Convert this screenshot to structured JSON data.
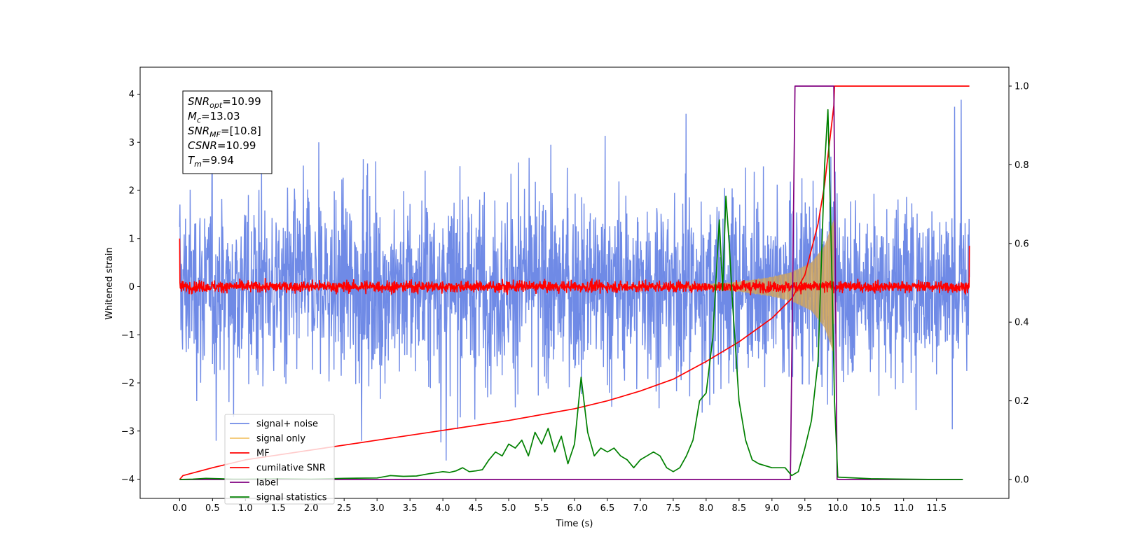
{
  "chart_data": {
    "type": "line",
    "title": "",
    "xlabel": "Time (s)",
    "ylabel": "Whitened strain",
    "xlim": [
      -0.6,
      12.6
    ],
    "ylim": [
      -4.4,
      4.56
    ],
    "y2lim": [
      -0.048,
      1.048
    ],
    "x_ticks": [
      0.0,
      0.5,
      1.0,
      1.5,
      2.0,
      2.5,
      3.0,
      3.5,
      4.0,
      4.5,
      5.0,
      5.5,
      6.0,
      6.5,
      7.0,
      7.5,
      8.0,
      8.5,
      9.0,
      9.5,
      10.0,
      10.5,
      11.0,
      11.5
    ],
    "x_tick_labels": [
      "0.0",
      "0.5",
      "1.0",
      "1.5",
      "2.0",
      "2.5",
      "3.0",
      "3.5",
      "4.0",
      "4.5",
      "5.0",
      "5.5",
      "6.0",
      "6.5",
      "7.0",
      "7.5",
      "8.0",
      "8.5",
      "9.0",
      "9.5",
      "10.0",
      "10.5",
      "11.0",
      "11.5"
    ],
    "y_ticks": [
      -4,
      -3,
      -2,
      -1,
      0,
      1,
      2,
      3,
      4
    ],
    "y_tick_labels": [
      "−4",
      "−3",
      "−2",
      "−1",
      "0",
      "1",
      "2",
      "3",
      "4"
    ],
    "y2_ticks": [
      0.0,
      0.2,
      0.4,
      0.6,
      0.8,
      1.0
    ],
    "y2_tick_labels": [
      "0.0",
      "0.2",
      "0.4",
      "0.6",
      "0.8",
      "1.0"
    ],
    "legend_placement": "lower-left",
    "grid": false,
    "annotation_box": {
      "lines": [
        {
          "main": "SNR",
          "sub": "opt",
          "value": "=10.99"
        },
        {
          "main": "M",
          "sub": "c",
          "value": "=13.03"
        },
        {
          "main": "SNR",
          "sub": "MF",
          "value": "=[10.8]"
        },
        {
          "main": "CSNR",
          "sub": "",
          "value": "=10.99"
        },
        {
          "main": "T",
          "sub": "m",
          "value": "=9.94"
        }
      ]
    },
    "series": [
      {
        "name": "signal+ noise",
        "color": "#6f8ae6",
        "axis": "left",
        "kind": "noise",
        "x_range": [
          0,
          12
        ],
        "amplitude_rms": 1.1,
        "peak_max": 4.2,
        "peak_min": -3.9
      },
      {
        "name": "signal only",
        "color": "#f2c56b",
        "axis": "left",
        "kind": "chirp",
        "x_range": [
          0,
          9.94
        ],
        "envelope": {
          "x": [
            7.5,
            8.0,
            8.5,
            9.0,
            9.3,
            9.6,
            9.8,
            9.94
          ],
          "amp": [
            0.03,
            0.05,
            0.1,
            0.2,
            0.3,
            0.5,
            0.85,
            1.4
          ]
        }
      },
      {
        "name": "MF",
        "color": "#ff0000",
        "axis": "left",
        "kind": "noise",
        "x_range": [
          0,
          12
        ],
        "amplitude_rms": 0.06,
        "edges": {
          "start": 1.0,
          "end": 0.85
        }
      },
      {
        "name": "cumilative SNR",
        "color": "#ff0000",
        "axis": "right",
        "x": [
          0.0,
          0.05,
          0.5,
          1.0,
          2.0,
          3.0,
          4.0,
          5.0,
          6.0,
          6.5,
          7.0,
          7.5,
          8.0,
          8.5,
          9.0,
          9.3,
          9.5,
          9.7,
          9.8,
          9.94,
          9.95,
          12.0
        ],
        "y": [
          0.0,
          0.01,
          0.03,
          0.05,
          0.075,
          0.1,
          0.125,
          0.15,
          0.18,
          0.2,
          0.225,
          0.255,
          0.3,
          0.35,
          0.41,
          0.46,
          0.52,
          0.65,
          0.75,
          0.95,
          1.0,
          1.0
        ]
      },
      {
        "name": "label",
        "color": "#800080",
        "axis": "right",
        "x": [
          0.0,
          9.28,
          9.35,
          9.94,
          9.99,
          11.9
        ],
        "y": [
          0.0,
          0.0,
          1.0,
          1.0,
          0.0,
          0.0
        ]
      },
      {
        "name": "signal statistics",
        "color": "#008000",
        "axis": "right",
        "x": [
          0.0,
          0.2,
          0.4,
          0.6,
          0.8,
          1.0,
          1.5,
          2.0,
          2.5,
          3.0,
          3.2,
          3.4,
          3.6,
          3.8,
          4.0,
          4.1,
          4.2,
          4.3,
          4.4,
          4.5,
          4.6,
          4.7,
          4.8,
          4.9,
          5.0,
          5.1,
          5.2,
          5.3,
          5.4,
          5.5,
          5.6,
          5.7,
          5.8,
          5.9,
          6.0,
          6.1,
          6.2,
          6.3,
          6.4,
          6.5,
          6.6,
          6.7,
          6.8,
          6.9,
          7.0,
          7.1,
          7.2,
          7.3,
          7.4,
          7.5,
          7.6,
          7.7,
          7.8,
          7.9,
          8.0,
          8.1,
          8.2,
          8.25,
          8.3,
          8.35,
          8.4,
          8.5,
          8.6,
          8.7,
          8.8,
          9.0,
          9.2,
          9.3,
          9.4,
          9.5,
          9.6,
          9.7,
          9.8,
          9.85,
          9.9,
          9.95,
          10.0,
          10.5,
          11.0,
          11.5,
          11.9
        ],
        "y": [
          0.0,
          0.001,
          0.003,
          0.002,
          0.001,
          0.001,
          0.002,
          0.001,
          0.003,
          0.004,
          0.01,
          0.008,
          0.009,
          0.015,
          0.02,
          0.018,
          0.022,
          0.03,
          0.02,
          0.022,
          0.025,
          0.05,
          0.07,
          0.06,
          0.09,
          0.08,
          0.1,
          0.06,
          0.12,
          0.09,
          0.13,
          0.07,
          0.11,
          0.04,
          0.09,
          0.26,
          0.12,
          0.06,
          0.08,
          0.07,
          0.08,
          0.06,
          0.05,
          0.03,
          0.05,
          0.06,
          0.07,
          0.06,
          0.03,
          0.02,
          0.03,
          0.06,
          0.1,
          0.2,
          0.22,
          0.36,
          0.66,
          0.48,
          0.72,
          0.6,
          0.45,
          0.2,
          0.1,
          0.05,
          0.04,
          0.03,
          0.03,
          0.01,
          0.02,
          0.08,
          0.15,
          0.3,
          0.8,
          0.94,
          0.6,
          0.2,
          0.006,
          0.002,
          0.001,
          0.0,
          0.0
        ]
      }
    ]
  }
}
